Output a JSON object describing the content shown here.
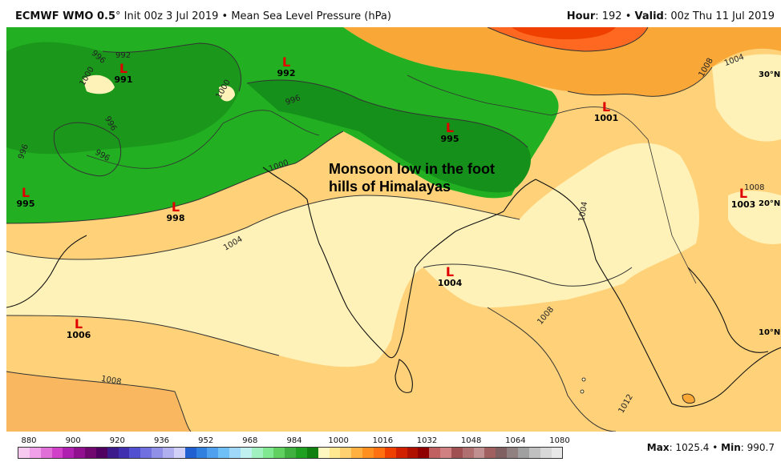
{
  "header": {
    "model": "ECMWF WMO 0.5",
    "degree": "°",
    "init": "Init 00z 3 Jul 2019",
    "sep": "•",
    "product": "Mean Sea Level Pressure (hPa)",
    "hour_label": "Hour",
    "hour_value": ": 192",
    "valid_label": "Valid",
    "valid_value": ": 00z Thu 11 Jul 2019"
  },
  "annotation": {
    "line1": "Monsoon low in the foot",
    "line2": "hills of Himalayas"
  },
  "lows": [
    {
      "symbol": "L",
      "value": "991"
    },
    {
      "symbol": "L",
      "value": "992"
    },
    {
      "symbol": "L",
      "value": "995"
    },
    {
      "symbol": "L",
      "value": "1001"
    },
    {
      "symbol": "L",
      "value": "995"
    },
    {
      "symbol": "L",
      "value": "998"
    },
    {
      "symbol": "L",
      "value": "1003"
    },
    {
      "symbol": "L",
      "value": "1004"
    },
    {
      "symbol": "L",
      "value": "1006"
    }
  ],
  "latitudes": [
    "30°N",
    "20°N",
    "10°N"
  ],
  "contour_labels": [
    "996",
    "992",
    "1000",
    "1000",
    "996",
    "996",
    "996",
    "996",
    "1000",
    "1004",
    "1008",
    "1008",
    "1008",
    "1004",
    "1012",
    "1008",
    "1004"
  ],
  "scale": {
    "labels": [
      "880",
      "900",
      "920",
      "936",
      "952",
      "968",
      "984",
      "1000",
      "1016",
      "1032",
      "1048",
      "1064",
      "1080"
    ],
    "colors": [
      "#f7c8f0",
      "#f0a0e8",
      "#e070d8",
      "#d040c8",
      "#b020b0",
      "#901090",
      "#700870",
      "#500060",
      "#3c1a8c",
      "#4030b0",
      "#5050d0",
      "#7070e0",
      "#9090e8",
      "#b0b0f0",
      "#d0d0f8",
      "#2060d0",
      "#3080e0",
      "#50a0f0",
      "#70c0f8",
      "#a0d8fa",
      "#c0f0f0",
      "#a0f0c0",
      "#80e890",
      "#60d060",
      "#40b040",
      "#20a020",
      "#108010",
      "#fff6c0",
      "#ffe890",
      "#ffd070",
      "#ffb040",
      "#ff9020",
      "#ff7010",
      "#f04000",
      "#d02000",
      "#b01000",
      "#900000",
      "#c06060",
      "#d08080",
      "#a05050",
      "#b07070",
      "#c09090",
      "#a06060",
      "#806060",
      "#908080",
      "#a0a0a0",
      "#c0c0c0",
      "#d8d8d8",
      "#e8e8e8"
    ]
  },
  "stats": {
    "max_label": "Max",
    "max_value": ": 1025.4",
    "sep": "•",
    "min_label": "Min",
    "min_value": ": 990.7"
  }
}
